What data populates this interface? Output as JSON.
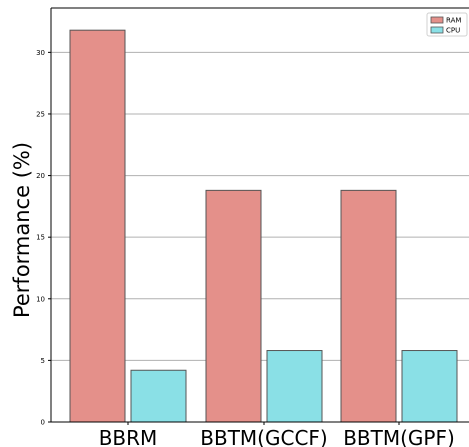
{
  "chart_data": {
    "type": "bar",
    "title": "",
    "xlabel": "",
    "ylabel": "Performance (%)",
    "categories": [
      "BBRM",
      "BBTM(GCCF)",
      "BBTM(GPF)"
    ],
    "series": [
      {
        "name": "RAM",
        "color": "#e4908a",
        "values": [
          31.8,
          18.8,
          18.8
        ]
      },
      {
        "name": "CPU",
        "color": "#8ae0e6",
        "values": [
          4.2,
          5.8,
          5.8
        ]
      }
    ],
    "ylim": [
      0,
      33.6
    ],
    "yticks": [
      0,
      5,
      10,
      15,
      20,
      25,
      30
    ],
    "grid": "horizontal",
    "legend_position": "top-right"
  }
}
